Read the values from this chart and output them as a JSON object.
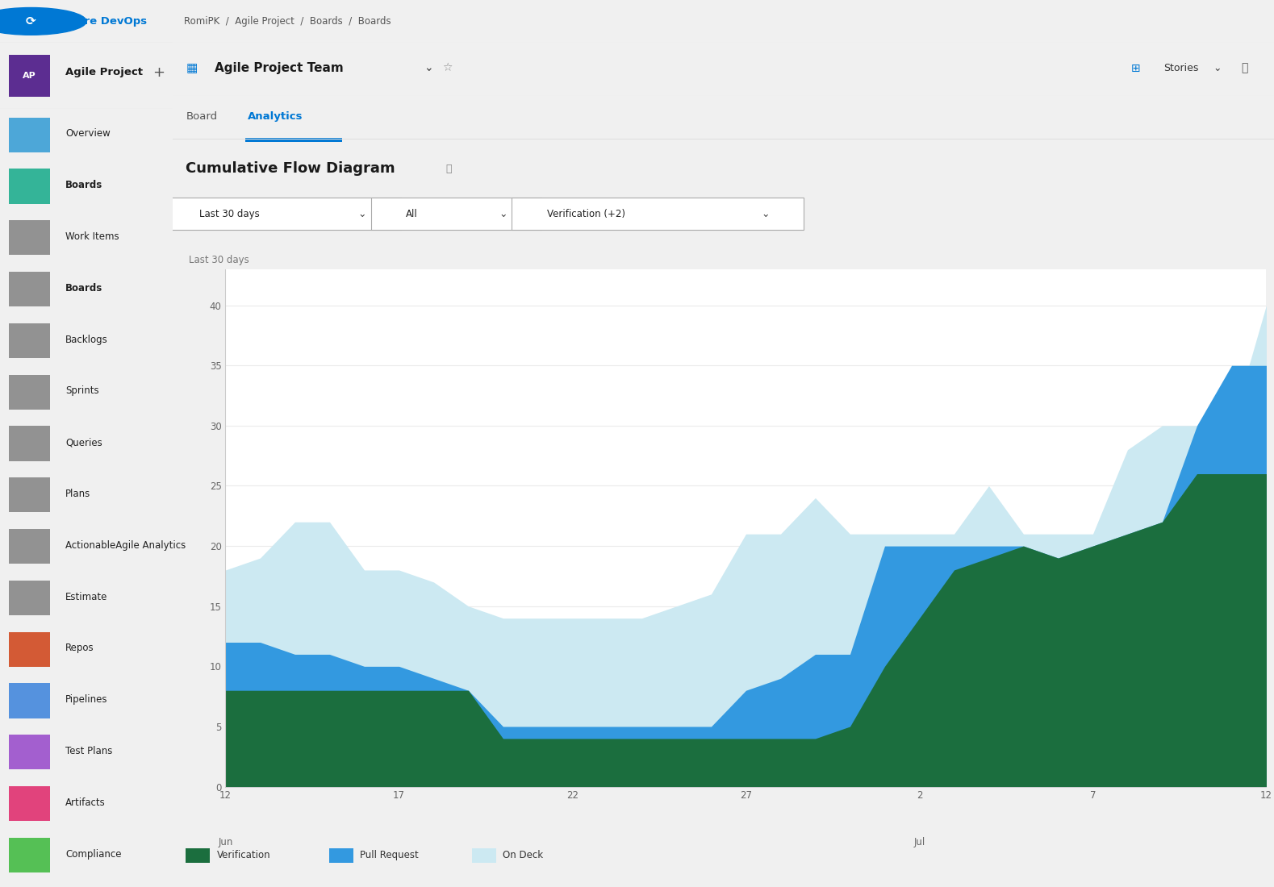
{
  "title": "Cumulative Flow Diagram",
  "subtitle": "Last 30 days",
  "breadcrumb": "RomiPK  /  Agile Project  /  Boards  /  Boards",
  "team_name": "Agile Project Team",
  "tab_board": "Board",
  "tab_analytics": "Analytics",
  "filter1": "Last 30 days",
  "filter2": "All",
  "filter3": "Verification (+2)",
  "stories_label": "Stories",
  "y_ticks": [
    0,
    5,
    10,
    15,
    20,
    25,
    30,
    35,
    40
  ],
  "y_max": 43,
  "legend": [
    "Verification",
    "Pull Request",
    "On Deck"
  ],
  "colors": {
    "verification": "#1b6e3e",
    "pull_request": "#3399e0",
    "on_deck": "#cce9f2",
    "sidebar_bg": "#f0f0f0",
    "topbar_bg": "#ffffff",
    "content_bg": "#ffffff",
    "grid_color": "#ebebeb",
    "text_dark": "#1a1a1a",
    "text_mid": "#444444",
    "text_light": "#767676",
    "highlight_blue": "#0078d4",
    "selected_bg": "#e8edf8",
    "boards_highlight": "#e8edf8"
  },
  "verification_data": [
    8,
    8,
    8,
    8,
    8,
    8,
    8,
    8,
    4,
    4,
    4,
    4,
    4,
    4,
    4,
    4,
    4,
    4,
    5,
    10,
    14,
    18,
    19,
    20,
    19,
    20,
    21,
    22,
    26,
    26,
    26
  ],
  "pull_request_data": [
    12,
    12,
    11,
    11,
    10,
    10,
    9,
    8,
    5,
    5,
    5,
    5,
    5,
    5,
    5,
    8,
    9,
    11,
    11,
    20,
    20,
    20,
    20,
    20,
    19,
    20,
    21,
    22,
    30,
    35,
    35
  ],
  "on_deck_data": [
    18,
    19,
    22,
    22,
    18,
    18,
    17,
    15,
    14,
    14,
    14,
    14,
    14,
    15,
    16,
    21,
    21,
    24,
    21,
    21,
    21,
    21,
    25,
    21,
    21,
    21,
    28,
    30,
    30,
    30,
    40
  ],
  "x_tick_positions": [
    0,
    5,
    10,
    15,
    20,
    25,
    30
  ],
  "x_tick_labels": [
    "12",
    "17",
    "22",
    "27",
    "2",
    "7",
    "12"
  ],
  "x_tick_sub": [
    "Jun",
    "",
    "",
    "",
    "Jul",
    "",
    ""
  ],
  "nav_items": [
    "Overview",
    "Boards",
    "Work Items",
    "Boards",
    "Backlogs",
    "Sprints",
    "Queries",
    "Plans",
    "ActionableAgile Analytics",
    "Estimate",
    "Repos",
    "Pipelines",
    "Test Plans",
    "Artifacts",
    "Compliance"
  ],
  "nav_bold": [
    false,
    true,
    false,
    true,
    false,
    false,
    false,
    false,
    false,
    false,
    false,
    false,
    false,
    false,
    false
  ],
  "nav_selected": [
    false,
    false,
    false,
    true,
    false,
    false,
    false,
    false,
    false,
    false,
    false,
    false,
    false,
    false,
    false
  ],
  "nav_icon_colors": [
    "#3b9fd6",
    "#1fae8f",
    "#888888",
    "#888888",
    "#888888",
    "#888888",
    "#888888",
    "#888888",
    "#888888",
    "#888888",
    "#d04a20",
    "#4488dd",
    "#9b4fcc",
    "#e03070",
    "#44bb44"
  ]
}
